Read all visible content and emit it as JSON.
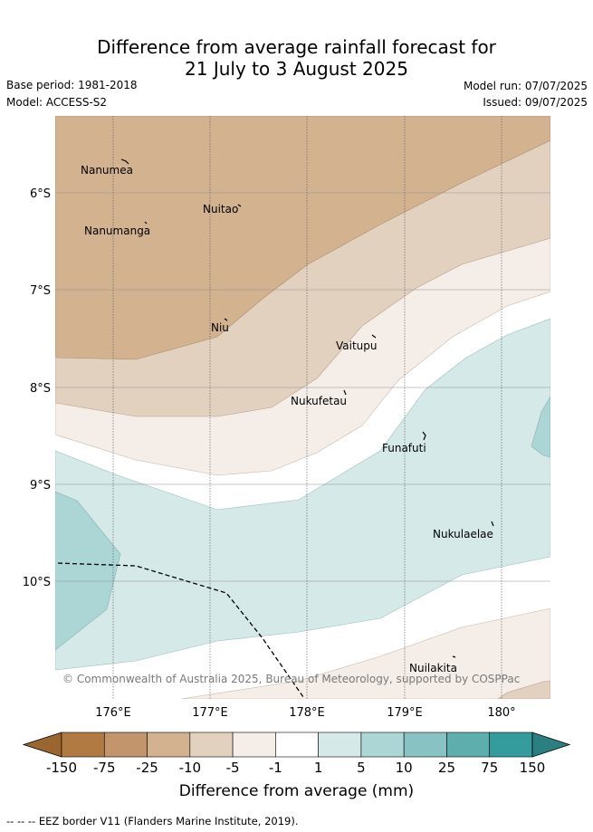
{
  "title_line1": "Difference from average rainfall forecast for",
  "title_line2": "21 July to 3 August 2025",
  "base_period": "Base period: 1981-2018",
  "model": "Model: ACCESS-S2",
  "model_run": "Model run: 07/07/2025",
  "issued": "Issued: 09/07/2025",
  "copyright": "© Commonwealth of Australia 2025, Bureau of Meteorology, supported by COSPPac",
  "lat_labels": [
    "6°S",
    "7°S",
    "8°S",
    "9°S",
    "10°S"
  ],
  "lon_labels": [
    "176°E",
    "177°E",
    "178°E",
    "179°E",
    "180°"
  ],
  "places": [
    {
      "name": "Nanumea"
    },
    {
      "name": "Nuitao"
    },
    {
      "name": "Nanumanga"
    },
    {
      "name": "Niu"
    },
    {
      "name": "Vaitupu"
    },
    {
      "name": "Nukufetau"
    },
    {
      "name": "Funafuti"
    },
    {
      "name": "Nukulaelae"
    },
    {
      "name": "Nuilakita"
    }
  ],
  "colorbar": {
    "labels": [
      "-150",
      "-75",
      "-25",
      "-10",
      "-5",
      "-1",
      "1",
      "5",
      "10",
      "25",
      "75",
      "150"
    ],
    "colors": [
      "#9b6530",
      "#b07a42",
      "#c3956c",
      "#d3b290",
      "#e3d1c0",
      "#f4ede8",
      "#ffffff",
      "#d5e9e8",
      "#acd6d6",
      "#88c2c2",
      "#5eaeae",
      "#349c9c",
      "#2a7f80"
    ],
    "title": "Difference from average (mm)"
  },
  "footer": "-- -- -- EEZ border V11 (Flanders Marine Institute, 2019)."
}
